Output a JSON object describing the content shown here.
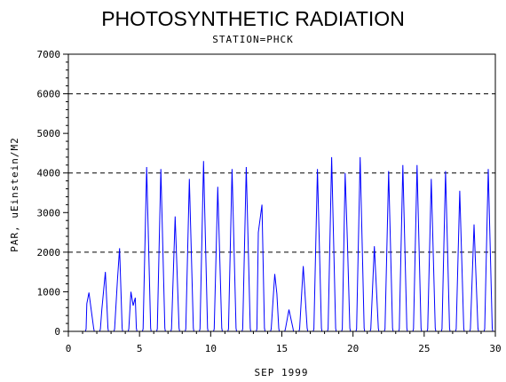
{
  "chart_data": {
    "type": "line",
    "title": "PHOTOSYNTHETIC RADIATION",
    "subtitle": "STATION=PHCK",
    "xlabel": "SEP 1999",
    "ylabel": "PAR, uEinstein/M2",
    "xlim": [
      0,
      30
    ],
    "ylim": [
      0,
      7000
    ],
    "x_ticks": [
      0,
      5,
      10,
      15,
      20,
      25,
      30
    ],
    "y_ticks": [
      0,
      1000,
      2000,
      3000,
      4000,
      5000,
      6000,
      7000
    ],
    "reference_lines": [
      2000,
      4000,
      6000
    ],
    "series": [
      {
        "color": "#0000ff",
        "daily_peaks": [
          {
            "day": 1,
            "peaks": [
              [
                1.3,
                700
              ],
              [
                1.45,
                980
              ],
              [
                1.6,
                550
              ]
            ]
          },
          {
            "day": 2,
            "peaks": [
              [
                2.35,
                550
              ],
              [
                2.6,
                1500
              ]
            ]
          },
          {
            "day": 3,
            "peaks": [
              [
                3.45,
                1300
              ],
              [
                3.6,
                2100
              ]
            ]
          },
          {
            "day": 4,
            "peaks": [
              [
                4.4,
                1000
              ],
              [
                4.55,
                650
              ],
              [
                4.7,
                850
              ]
            ]
          },
          {
            "day": 5,
            "peaks": [
              [
                5.5,
                4150
              ]
            ]
          },
          {
            "day": 6,
            "peaks": [
              [
                6.5,
                4100
              ]
            ]
          },
          {
            "day": 7,
            "peaks": [
              [
                7.5,
                2900
              ]
            ]
          },
          {
            "day": 8,
            "peaks": [
              [
                8.5,
                3850
              ]
            ]
          },
          {
            "day": 9,
            "peaks": [
              [
                9.5,
                4300
              ]
            ]
          },
          {
            "day": 10,
            "peaks": [
              [
                10.5,
                3650
              ]
            ]
          },
          {
            "day": 11,
            "peaks": [
              [
                11.5,
                4100
              ]
            ]
          },
          {
            "day": 12,
            "peaks": [
              [
                12.5,
                4150
              ]
            ]
          },
          {
            "day": 13,
            "peaks": [
              [
                13.35,
                2500
              ],
              [
                13.6,
                3200
              ]
            ]
          },
          {
            "day": 14,
            "peaks": [
              [
                14.5,
                1450
              ],
              [
                14.65,
                950
              ]
            ]
          },
          {
            "day": 15,
            "peaks": [
              [
                15.5,
                550
              ]
            ]
          },
          {
            "day": 16,
            "peaks": [
              [
                16.5,
                1650
              ]
            ]
          },
          {
            "day": 17,
            "peaks": [
              [
                17.5,
                4100
              ]
            ]
          },
          {
            "day": 18,
            "peaks": [
              [
                18.5,
                4400
              ]
            ]
          },
          {
            "day": 19,
            "peaks": [
              [
                19.45,
                4000
              ],
              [
                19.6,
                2300
              ]
            ]
          },
          {
            "day": 20,
            "peaks": [
              [
                20.5,
                4400
              ]
            ]
          },
          {
            "day": 21,
            "peaks": [
              [
                21.5,
                2150
              ]
            ]
          },
          {
            "day": 22,
            "peaks": [
              [
                22.5,
                4050
              ]
            ]
          },
          {
            "day": 23,
            "peaks": [
              [
                23.5,
                4200
              ]
            ]
          },
          {
            "day": 24,
            "peaks": [
              [
                24.5,
                4200
              ]
            ]
          },
          {
            "day": 25,
            "peaks": [
              [
                25.5,
                3850
              ]
            ]
          },
          {
            "day": 26,
            "peaks": [
              [
                26.5,
                4050
              ]
            ]
          },
          {
            "day": 27,
            "peaks": [
              [
                27.5,
                3550
              ]
            ]
          },
          {
            "day": 28,
            "peaks": [
              [
                28.5,
                2700
              ]
            ]
          },
          {
            "day": 29,
            "peaks": [
              [
                29.5,
                4100
              ]
            ]
          }
        ]
      }
    ]
  }
}
